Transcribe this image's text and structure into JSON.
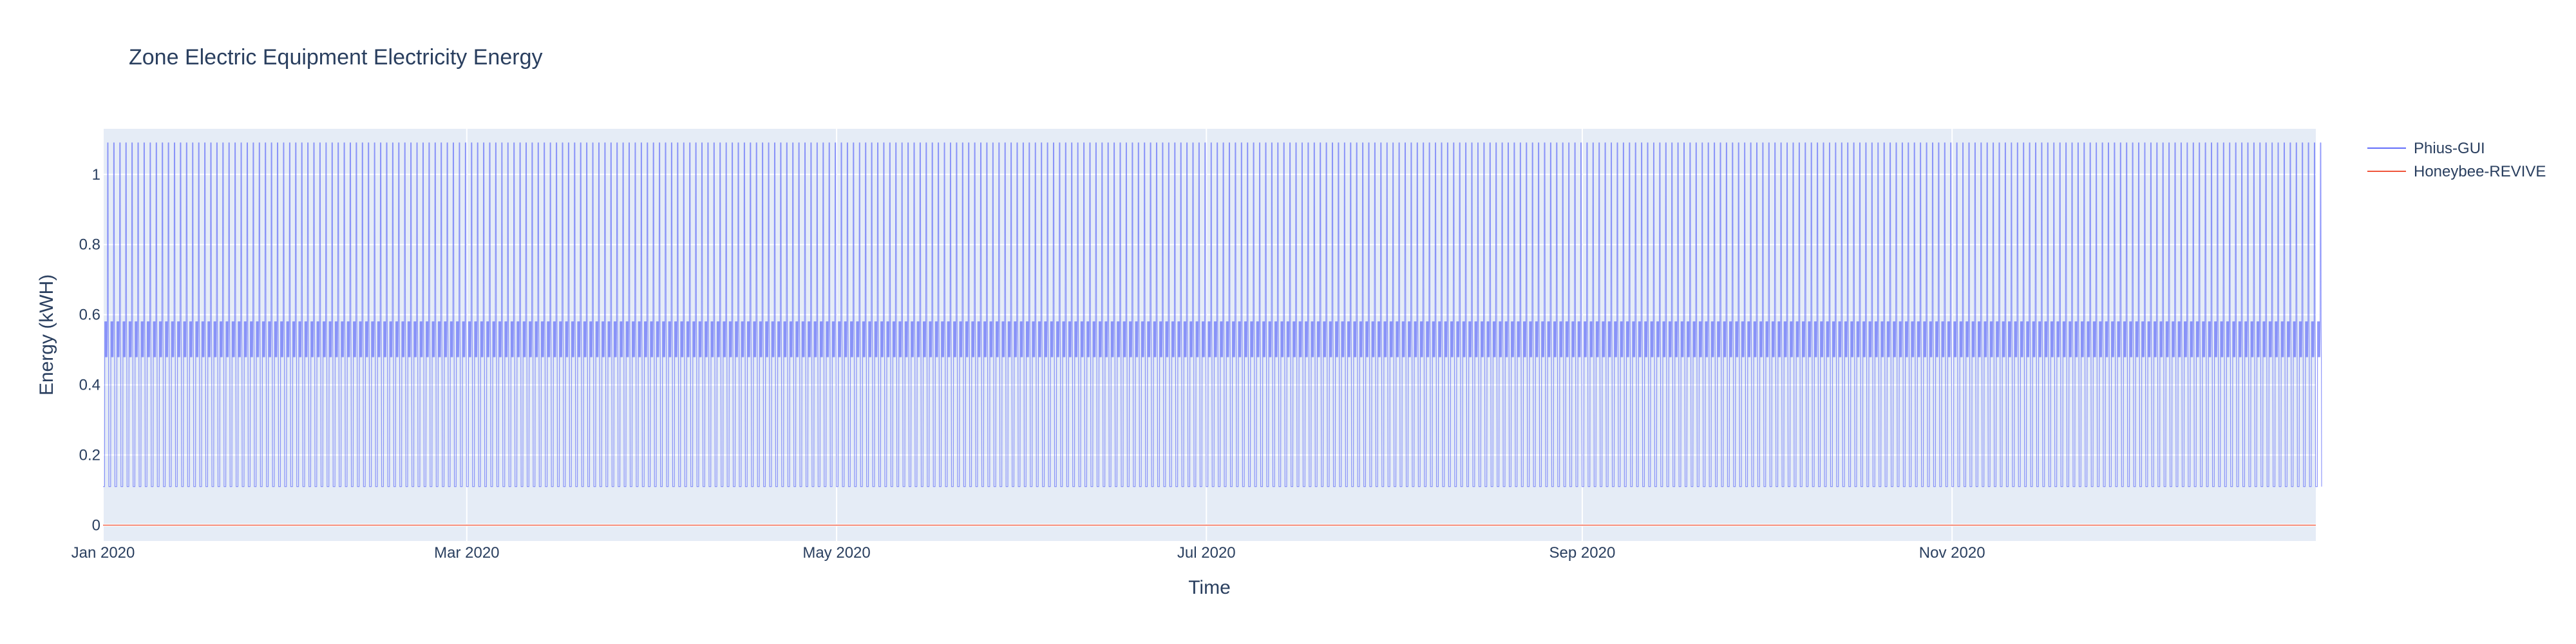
{
  "chart_data": {
    "type": "line",
    "title": "Zone Electric Equipment Electricity Energy",
    "xlabel": "Time",
    "ylabel": "Energy (kWH)",
    "xlim": [
      "2020-01-01",
      "2020-12-31"
    ],
    "ylim": [
      -0.045,
      1.13
    ],
    "x_ticks": [
      {
        "date": "2020-01-01",
        "label": "Jan 2020"
      },
      {
        "date": "2020-03-01",
        "label": "Mar 2020"
      },
      {
        "date": "2020-05-01",
        "label": "May 2020"
      },
      {
        "date": "2020-07-01",
        "label": "Jul 2020"
      },
      {
        "date": "2020-09-01",
        "label": "Sep 2020"
      },
      {
        "date": "2020-11-01",
        "label": "Nov 2020"
      }
    ],
    "y_ticks": [
      0,
      0.2,
      0.4,
      0.6,
      0.8,
      1
    ],
    "y_tick_labels": [
      "0",
      "0.2",
      "0.4",
      "0.6",
      "0.8",
      "1"
    ],
    "grid": true,
    "legend_position": "top-right",
    "series": [
      {
        "name": "Phius-GUI",
        "color": "#636efa",
        "pattern": "hourly, repeating every day",
        "daily_profile_kwh": [
          0.11,
          0.11,
          0.11,
          0.11,
          0.11,
          0.11,
          0.11,
          0.58,
          0.48,
          0.58,
          0.48,
          0.58,
          0.48,
          0.58,
          0.48,
          0.58,
          0.48,
          0.58,
          1.09,
          1.09,
          1.09,
          0.58,
          0.48,
          0.11
        ],
        "start_date": "2020-01-01",
        "end_date": "2020-12-31"
      },
      {
        "name": "Honeybee-REVIVE",
        "color": "#ef553b",
        "pattern": "constant",
        "value_kwh": 0.0,
        "start_date": "2020-01-01",
        "end_date": "2020-12-31"
      }
    ]
  }
}
